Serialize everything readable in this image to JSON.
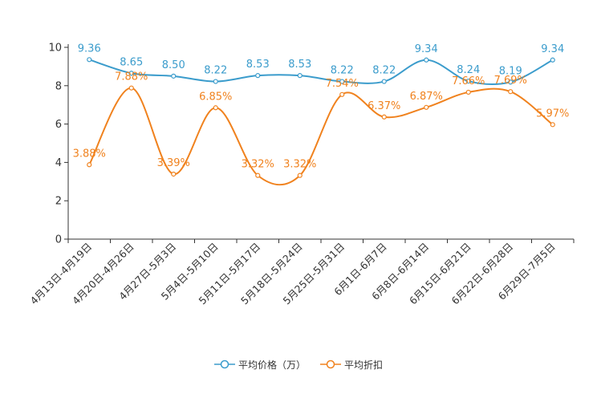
{
  "chart_data": {
    "type": "line",
    "categories": [
      "4月13日-4月19日",
      "4月20日-4月26日",
      "4月27日-5月3日",
      "5月4日-5月10日",
      "5月11日-5月17日",
      "5月18日-5月24日",
      "5月25日-5月31日",
      "6月1日-6月7日",
      "6月8日-6月14日",
      "6月15日-6月21日",
      "6月22日-6月28日",
      "6月29日-7月5日"
    ],
    "series": [
      {
        "name": "平均价格（万）",
        "color": "#3b9ccc",
        "values": [
          9.36,
          8.65,
          8.5,
          8.22,
          8.53,
          8.53,
          8.22,
          8.22,
          9.34,
          8.24,
          8.19,
          9.34
        ],
        "labels": [
          "9.36",
          "8.65",
          "8.50",
          "8.22",
          "8.53",
          "8.53",
          "8.22",
          "8.22",
          "9.34",
          "8.24",
          "8.19",
          "9.34"
        ]
      },
      {
        "name": "平均折扣",
        "color": "#f0821e",
        "values": [
          3.88,
          7.88,
          3.39,
          6.85,
          3.32,
          3.32,
          7.54,
          6.37,
          6.87,
          7.66,
          7.69,
          5.97
        ],
        "labels": [
          "3.88%",
          "7.88%",
          "3.39%",
          "6.85%",
          "3.32%",
          "3.32%",
          "7.54%",
          "6.37%",
          "6.87%",
          "7.66%",
          "7.69%",
          "5.97%"
        ]
      }
    ],
    "ylim": [
      0,
      10
    ],
    "yticks": [
      "0",
      "2",
      "4",
      "6",
      "8",
      "10"
    ],
    "legend_position": "bottom"
  }
}
